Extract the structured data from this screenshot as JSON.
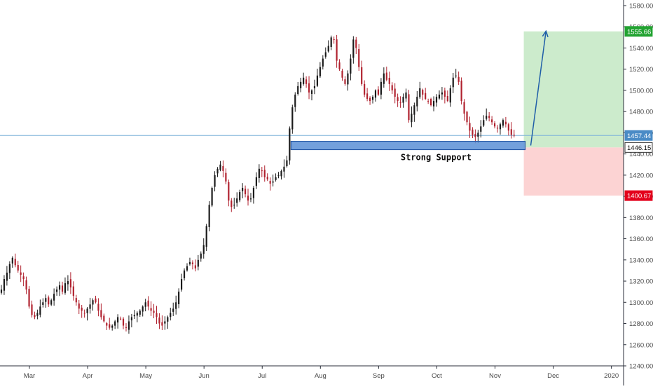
{
  "colors": {
    "up": "#1a1a1a",
    "down": "#b0212e",
    "grid_text": "#4a4a4a",
    "axis_line": "#2a2e39",
    "support_fill": "#5b8fd6",
    "support_stroke": "#1e4fa0",
    "target_fill": "#ccebcc",
    "stop_fill": "#fcd3d3",
    "arrow": "#1f5ea8",
    "hline": "#7fb3d9",
    "price_badge_current": "#4a8bc6",
    "price_badge_target": "#22a331",
    "price_badge_stop": "#e3001b",
    "price_badge_entry": "#ffffff"
  },
  "chart_data": {
    "type": "candlestick",
    "xlabel": "",
    "ylabel": "",
    "ylim": [
      1240,
      1580
    ],
    "y_ticks": [
      "1580.00",
      "1560.00",
      "1540.00",
      "1520.00",
      "1500.00",
      "1480.00",
      "1460.00",
      "1440.00",
      "1420.00",
      "1400.00",
      "1380.00",
      "1360.00",
      "1340.00",
      "1320.00",
      "1300.00",
      "1280.00",
      "1260.00",
      "1240.00"
    ],
    "x_ticks": [
      "Mar",
      "Apr",
      "May",
      "Jun",
      "Jul",
      "Aug",
      "Sep",
      "Oct",
      "Nov",
      "Dec",
      "2020"
    ],
    "x_tick_index": [
      0,
      21,
      42,
      63,
      84,
      105,
      126,
      147,
      168,
      189,
      210
    ],
    "total_slots": 225,
    "closes": [
      1312,
      1322,
      1328,
      1336,
      1342,
      1335,
      1330,
      1326,
      1322,
      1312,
      1296,
      1288,
      1286,
      1290,
      1296,
      1300,
      1304,
      1298,
      1302,
      1308,
      1312,
      1316,
      1310,
      1318,
      1320,
      1314,
      1306,
      1300,
      1294,
      1292,
      1290,
      1294,
      1298,
      1302,
      1300,
      1292,
      1286,
      1282,
      1278,
      1276,
      1278,
      1282,
      1286,
      1284,
      1278,
      1276,
      1282,
      1286,
      1288,
      1290,
      1292,
      1296,
      1300,
      1296,
      1292,
      1290,
      1286,
      1280,
      1278,
      1282,
      1286,
      1290,
      1294,
      1300,
      1310,
      1322,
      1330,
      1334,
      1338,
      1336,
      1332,
      1340,
      1346,
      1354,
      1372,
      1392,
      1408,
      1420,
      1426,
      1430,
      1424,
      1414,
      1396,
      1390,
      1392,
      1398,
      1404,
      1408,
      1402,
      1396,
      1398,
      1408,
      1418,
      1426,
      1424,
      1418,
      1416,
      1412,
      1414,
      1418,
      1420,
      1424,
      1428,
      1434,
      1464,
      1484,
      1496,
      1504,
      1508,
      1512,
      1506,
      1498,
      1500,
      1504,
      1514,
      1522,
      1530,
      1536,
      1542,
      1550,
      1548,
      1528,
      1520,
      1512,
      1506,
      1516,
      1530,
      1548,
      1540,
      1522,
      1506,
      1496,
      1492,
      1490,
      1494,
      1500,
      1496,
      1508,
      1516,
      1510,
      1506,
      1500,
      1494,
      1490,
      1488,
      1494,
      1498,
      1472,
      1478,
      1486,
      1494,
      1502,
      1496,
      1492,
      1490,
      1486,
      1490,
      1494,
      1496,
      1498,
      1494,
      1490,
      1502,
      1512,
      1514,
      1508,
      1490,
      1478,
      1470,
      1462,
      1458,
      1456,
      1460,
      1466,
      1472,
      1476,
      1474,
      1470,
      1466,
      1464,
      1468,
      1472,
      1468,
      1462,
      1458,
      1457.44
    ],
    "lows_extra": [],
    "annotations": {
      "support_label": "Strong Support",
      "current_price": "1457.44",
      "target_price": "1555.66",
      "entry_price": "1446.15",
      "stop_price": "1400.67"
    },
    "levels": {
      "support_low": 1444,
      "support_high": 1452,
      "current": 1457.44,
      "target": 1555.66,
      "entry": 1446.15,
      "stop": 1400.67
    },
    "position_box": {
      "start_index": 189,
      "end_index": 224
    },
    "arrow": {
      "from_index": 191,
      "from_value": 1448,
      "to_index": 196,
      "to_value": 1556
    },
    "grid": false
  }
}
